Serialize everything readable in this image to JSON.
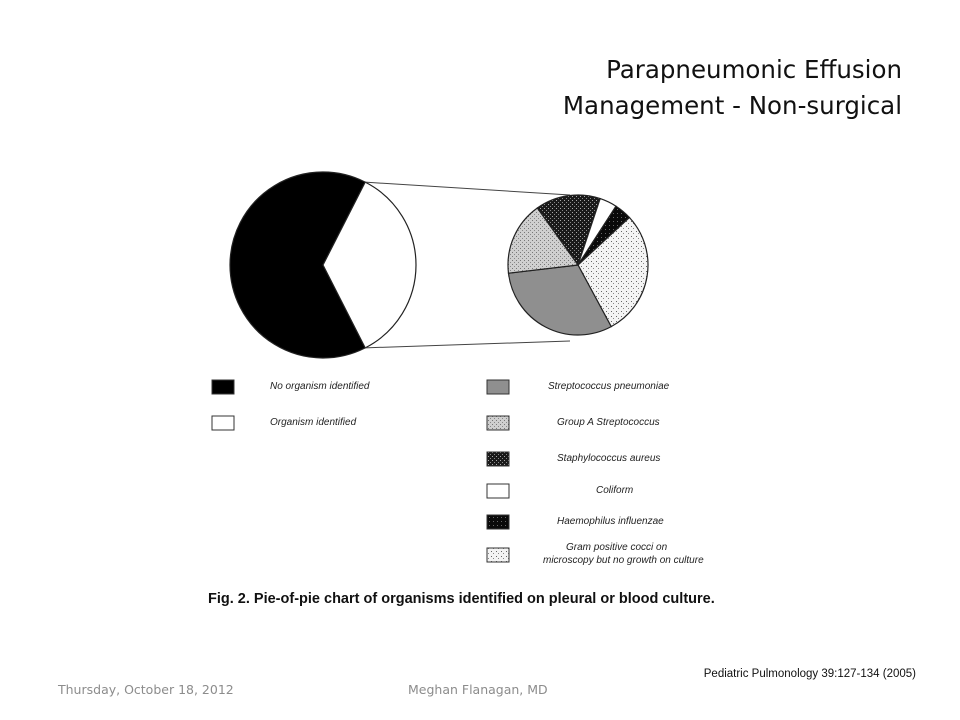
{
  "slide": {
    "title_line1": "Parapneumonic Effusion",
    "title_line2": "Management - Non-surgical",
    "caption": "Fig. 2. Pie-of-pie chart of organisms identified on pleural or blood culture.",
    "citation": "Pediatric Pulmonology 39:127-134 (2005)",
    "footer_date": "Thursday, October 18, 2012",
    "footer_author": "Meghan Flanagan, MD"
  },
  "chart_data": {
    "type": "pie",
    "subtype": "pie-of-pie",
    "title": "",
    "primary": {
      "slices": [
        {
          "label": "No organism identified",
          "value": 65,
          "pattern": "solid-black"
        },
        {
          "label": "Organism identified",
          "value": 35,
          "pattern": "white"
        }
      ]
    },
    "secondary": {
      "source": "Organism identified",
      "slices": [
        {
          "label": "Streptococcus pneumoniae",
          "value": 31,
          "pattern": "gray"
        },
        {
          "label": "Group A Streptococcus",
          "value": 17,
          "pattern": "light-stipple"
        },
        {
          "label": "Staphylococcus aureus",
          "value": 15,
          "pattern": "dark-hatch"
        },
        {
          "label": "Coliform",
          "value": 4,
          "pattern": "white"
        },
        {
          "label": "Haemophilus influenzae",
          "value": 4,
          "pattern": "black-hatch"
        },
        {
          "label": "Gram positive cocci on microscopy but no growth on culture",
          "value": 29,
          "pattern": "dot-stipple"
        }
      ]
    },
    "legend": {
      "left": [
        "No organism identified",
        "Organism identified"
      ],
      "right": [
        "Streptococcus pneumoniae",
        "Group A Streptococcus",
        "Staphylococcus aureus",
        "Coliform",
        "Haemophilus influenzae",
        [
          "Gram positive cocci on",
          "microscopy but no growth on culture"
        ]
      ]
    }
  }
}
